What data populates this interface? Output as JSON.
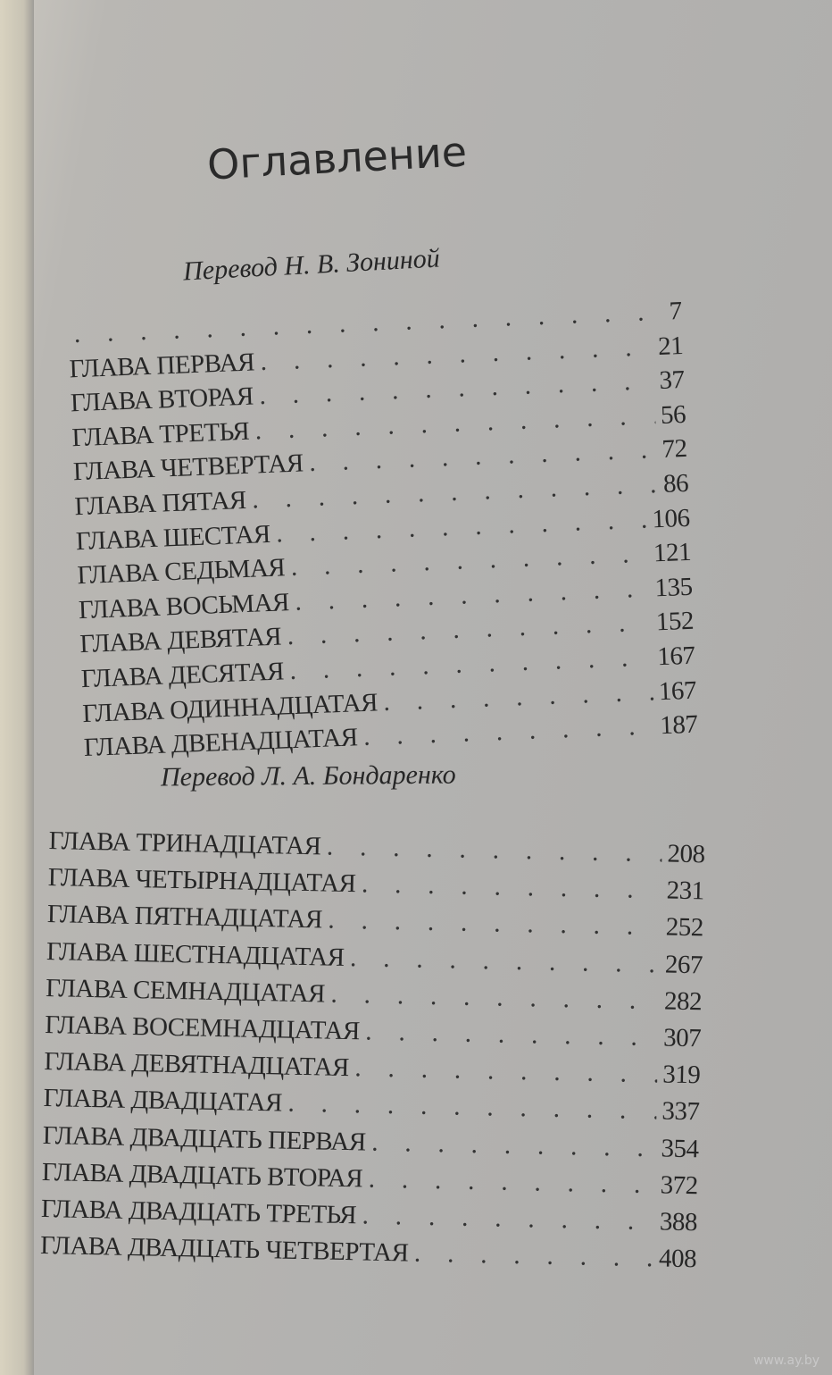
{
  "title": "Оглавление",
  "sections": [
    {
      "translator": "Перевод Н. В. Зониной",
      "entries": [
        {
          "label": "",
          "page": "7"
        },
        {
          "label": "ГЛАВА ПЕРВАЯ",
          "page": "21"
        },
        {
          "label": "ГЛАВА ВТОРАЯ",
          "page": "37"
        },
        {
          "label": "ГЛАВА ТРЕТЬЯ",
          "page": "56"
        },
        {
          "label": "ГЛАВА ЧЕТВЕРТАЯ",
          "page": "72"
        },
        {
          "label": "ГЛАВА ПЯТАЯ",
          "page": "86"
        },
        {
          "label": "ГЛАВА ШЕСТАЯ",
          "page": "106"
        },
        {
          "label": "ГЛАВА СЕДЬМАЯ",
          "page": "121"
        },
        {
          "label": "ГЛАВА ВОСЬМАЯ",
          "page": "135"
        },
        {
          "label": "ГЛАВА ДЕВЯТАЯ",
          "page": "152"
        },
        {
          "label": "ГЛАВА ДЕСЯТАЯ",
          "page": "167"
        },
        {
          "label": "ГЛАВА ОДИННАДЦАТАЯ",
          "page": "167"
        },
        {
          "label": "ГЛАВА ДВЕНАДЦАТАЯ",
          "page": "187"
        }
      ]
    },
    {
      "translator": "Перевод Л. А. Бондаренко",
      "entries": [
        {
          "label": "ГЛАВА ТРИНАДЦАТАЯ",
          "page": "208"
        },
        {
          "label": "ГЛАВА ЧЕТЫРНАДЦАТАЯ",
          "page": "231"
        },
        {
          "label": "ГЛАВА ПЯТНАДЦАТАЯ",
          "page": "252"
        },
        {
          "label": "ГЛАВА ШЕСТНАДЦАТАЯ",
          "page": "267"
        },
        {
          "label": "ГЛАВА СЕМНАДЦАТАЯ",
          "page": "282"
        },
        {
          "label": "ГЛАВА ВОСЕМНАДЦАТАЯ",
          "page": "307"
        },
        {
          "label": "ГЛАВА ДЕВЯТНАДЦАТАЯ",
          "page": "319"
        },
        {
          "label": "ГЛАВА ДВАДЦАТАЯ",
          "page": "337"
        },
        {
          "label": "ГЛАВА ДВАДЦАТЬ ПЕРВАЯ",
          "page": "354"
        },
        {
          "label": "ГЛАВА ДВАДЦАТЬ ВТОРАЯ",
          "page": "372"
        },
        {
          "label": "ГЛАВА ДВАДЦАТЬ ТРЕТЬЯ",
          "page": "388"
        },
        {
          "label": "ГЛАВА ДВАДЦАТЬ ЧЕТВЕРТАЯ",
          "page": "408"
        }
      ]
    }
  ],
  "watermark": "www.ay.by"
}
